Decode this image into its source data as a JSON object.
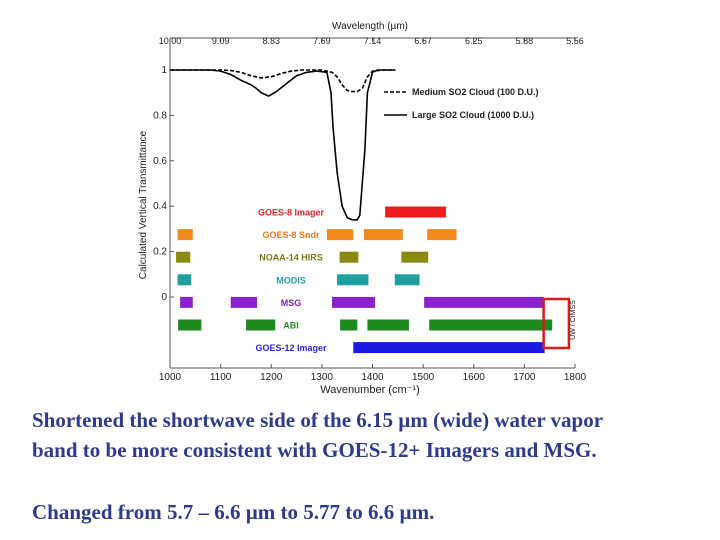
{
  "chart_data": {
    "type": "line",
    "top_axis_label": "Wavelength (µm)",
    "top_tick_labels": [
      "10.00",
      "9.09",
      "8.33",
      "7.69",
      "7.14",
      "6.67",
      "6.25",
      "5.88",
      "5.56"
    ],
    "xlabel": "Wavenumber (cm⁻¹)",
    "ylabel": "Calculated Vertical Transmittance",
    "xlim": [
      1000,
      1800
    ],
    "ylim": [
      0,
      1
    ],
    "x_ticks": [
      1000,
      1100,
      1200,
      1300,
      1400,
      1500,
      1600,
      1700,
      1800
    ],
    "y_ticks": [
      {
        "value": 1,
        "label": "1"
      },
      {
        "value": 0.8,
        "label": "0.8"
      },
      {
        "value": 0.6,
        "label": "0.6"
      },
      {
        "value": 0.4,
        "label": "0.4"
      },
      {
        "value": 0.2,
        "label": "0.2"
      },
      {
        "value": 0,
        "label": "0"
      }
    ],
    "series": [
      {
        "name": "Medium SO2 Cloud (100 D.U.)",
        "style": "dashed",
        "color": "#000000",
        "x": [
          1000,
          1100,
          1120,
          1140,
          1160,
          1180,
          1200,
          1220,
          1240,
          1260,
          1280,
          1300,
          1320,
          1330,
          1340,
          1350,
          1360,
          1370,
          1380,
          1390,
          1400,
          1420,
          1440,
          1445
        ],
        "y": [
          1,
          1,
          0.998,
          0.99,
          0.975,
          0.965,
          0.97,
          0.985,
          0.995,
          1,
          1,
          1,
          0.99,
          0.97,
          0.935,
          0.91,
          0.905,
          0.905,
          0.92,
          0.97,
          0.995,
          1,
          1,
          1
        ]
      },
      {
        "name": "Large SO2 Cloud (1000 D.U.)",
        "style": "solid",
        "color": "#000000",
        "x": [
          1000,
          1080,
          1100,
          1120,
          1140,
          1160,
          1170,
          1180,
          1195,
          1210,
          1230,
          1250,
          1270,
          1290,
          1310,
          1318,
          1322,
          1330,
          1340,
          1350,
          1360,
          1370,
          1375,
          1385,
          1390,
          1400,
          1410,
          1420,
          1445
        ],
        "y": [
          1,
          1,
          0.995,
          0.98,
          0.955,
          0.935,
          0.92,
          0.9,
          0.885,
          0.905,
          0.94,
          0.975,
          0.99,
          0.995,
          0.99,
          0.9,
          0.75,
          0.55,
          0.4,
          0.35,
          0.34,
          0.34,
          0.36,
          0.65,
          0.9,
          0.99,
          1,
          1,
          1
        ]
      }
    ],
    "legend_position": "top-right",
    "instrument_rows": [
      {
        "label": "GOES-8 Imager",
        "label_color": "#e02020",
        "color": "#ee1c1c",
        "bands": [
          [
            1425,
            1545
          ]
        ]
      },
      {
        "label": "GOES-8 Sndr",
        "label_color": "#e87a1e",
        "color": "#f28a1e",
        "bands": [
          [
            1015,
            1045
          ],
          [
            1310,
            1362
          ],
          [
            1383,
            1460
          ],
          [
            1508,
            1566
          ]
        ]
      },
      {
        "label": "NOAA-14 HIRS",
        "label_color": "#7a7a10",
        "color": "#8a8a10",
        "bands": [
          [
            1012,
            1040
          ],
          [
            1335,
            1372
          ],
          [
            1457,
            1510
          ]
        ]
      },
      {
        "label": "MODIS",
        "label_color": "#20a0a0",
        "color": "#1ea0a0",
        "bands": [
          [
            1015,
            1042
          ],
          [
            1330,
            1392
          ],
          [
            1444,
            1493
          ]
        ]
      },
      {
        "label": "MSG",
        "label_color": "#8020c0",
        "color": "#8a22cc",
        "bands": [
          [
            1020,
            1045
          ],
          [
            1120,
            1172
          ],
          [
            1320,
            1405
          ],
          [
            1502,
            1738
          ]
        ]
      },
      {
        "label": "ABI",
        "label_color": "#2a8a2a",
        "color": "#1e8a1e",
        "bands": [
          [
            1016,
            1062
          ],
          [
            1150,
            1208
          ],
          [
            1336,
            1370
          ],
          [
            1390,
            1472
          ],
          [
            1512,
            1755
          ]
        ]
      },
      {
        "label": "GOES-12 Imager",
        "label_color": "#2a2ad8",
        "color": "#1a1ae0",
        "bands": [
          [
            1362,
            1740
          ]
        ]
      }
    ],
    "highlight_box": {
      "x_range": [
        1738,
        1788
      ],
      "color": "#dd1a1a"
    },
    "side_label": "UW / CIMSS"
  },
  "caption": {
    "line1": "Shortened the shortwave side of the 6.15 µm (wide) water vapor",
    "line2": "band to be more consistent with GOES-12+ Imagers and MSG.",
    "line3": "Changed from 5.7 – 6.6 µm to 5.77 to 6.6 µm."
  }
}
